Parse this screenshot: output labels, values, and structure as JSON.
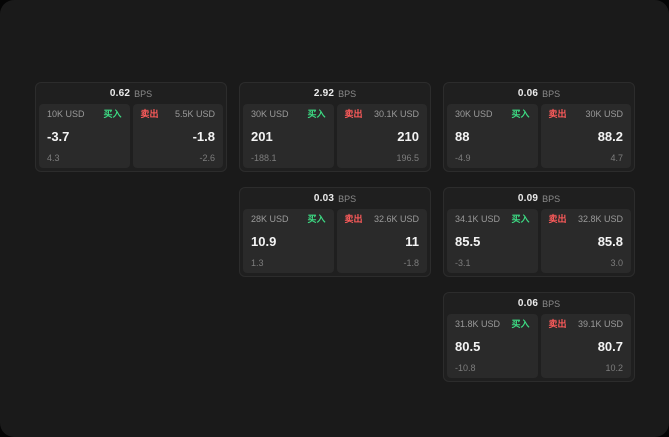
{
  "labels": {
    "bps": "BPS",
    "buy": "买入",
    "sell": "卖出"
  },
  "colors": {
    "buy": "#3ddc84",
    "sell": "#ff5b5b",
    "window_bg": "#1a1a1a",
    "card_bg": "#1f1f1f",
    "panel_bg": "#2a2a2a"
  },
  "cards": [
    {
      "bps": "0.62",
      "buy": {
        "size": "10K USD",
        "price": "-3.7",
        "delta": "4.3"
      },
      "sell": {
        "size": "5.5K USD",
        "price": "-1.8",
        "delta": "-2.6"
      }
    },
    {
      "bps": "2.92",
      "buy": {
        "size": "30K USD",
        "price": "201",
        "delta": "-188.1"
      },
      "sell": {
        "size": "30.1K USD",
        "price": "210",
        "delta": "196.5"
      }
    },
    {
      "bps": "0.06",
      "buy": {
        "size": "30K USD",
        "price": "88",
        "delta": "-4.9"
      },
      "sell": {
        "size": "30K USD",
        "price": "88.2",
        "delta": "4.7"
      }
    },
    {
      "bps": "0.03",
      "buy": {
        "size": "28K USD",
        "price": "10.9",
        "delta": "1.3"
      },
      "sell": {
        "size": "32.6K USD",
        "price": "11",
        "delta": "-1.8"
      }
    },
    {
      "bps": "0.09",
      "buy": {
        "size": "34.1K USD",
        "price": "85.5",
        "delta": "-3.1"
      },
      "sell": {
        "size": "32.8K USD",
        "price": "85.8",
        "delta": "3.0"
      }
    },
    {
      "bps": "0.06",
      "buy": {
        "size": "31.8K USD",
        "price": "80.5",
        "delta": "-10.8"
      },
      "sell": {
        "size": "39.1K USD",
        "price": "80.7",
        "delta": "10.2"
      }
    }
  ]
}
